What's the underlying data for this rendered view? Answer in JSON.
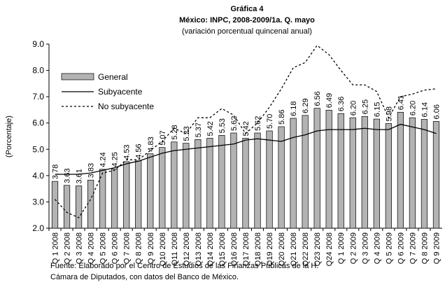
{
  "chart_data": {
    "type": "bar",
    "title": "Gráfica 4",
    "subtitle": "México: INPC, 2008-2009/1a. Q. mayo",
    "subtitle2": "(variación porcentual quincenal anual)",
    "ylabel": "(Porcentaje)",
    "notes": [
      "Fuente: Elaborado por el Centro de Estudios de las Finanzas Públicas de la H.",
      "Cámara de Diputados, con  datos del Banco de México."
    ],
    "categories": [
      "Q 1 2008",
      "Q 2 2008",
      "Q 3 2008",
      "Q 4 2008",
      "Q 5 2008",
      "Q 6 2008",
      "Q 7 2008",
      "Q 8 2008",
      "Q 9 2008",
      "Q10 2008",
      "Q11 2008",
      "Q12 2008",
      "Q13 2008",
      "Q14 2008",
      "Q15 2008",
      "Q16 2008",
      "Q17 2008",
      "Q18 2008",
      "Q19 2008",
      "Q20 2008",
      "Q21 2008",
      "Q22 2008",
      "Q23 2008",
      "Q24 2008",
      "Q 1 2009",
      "Q 2 2009",
      "Q 3 2009",
      "Q 4 2009",
      "Q 5 2009",
      "Q 6 2009",
      "Q 7 2009",
      "Q 8 2009",
      "Q 9 2009"
    ],
    "series": [
      {
        "name": "General",
        "type": "bar",
        "color": "#b3b3b3",
        "values": [
          3.78,
          3.63,
          3.61,
          3.83,
          4.24,
          4.25,
          4.53,
          4.56,
          4.83,
          5.07,
          5.28,
          5.23,
          5.37,
          5.42,
          5.53,
          5.62,
          5.42,
          5.62,
          5.7,
          5.86,
          6.18,
          6.29,
          6.56,
          6.49,
          6.36,
          6.2,
          6.25,
          6.15,
          5.98,
          6.41,
          6.2,
          6.14,
          6.06
        ],
        "value_labels": [
          "3.78",
          "3.63",
          "3.61",
          "3.83",
          "4.24",
          "4.25",
          "4.53",
          "4.56",
          "4.83",
          "5.07",
          "5.28",
          "5.23",
          "5.37",
          "5.42",
          "5.53",
          "5.62",
          "5.42",
          "5.62",
          "5.70",
          "5.86",
          "6.18",
          "6.29",
          "6.56",
          "6.49",
          "6.36",
          "6.20",
          "6.25",
          "6.15",
          "5.98",
          "6.41",
          "6.20",
          "6.14",
          "6.06"
        ]
      },
      {
        "name": "Subyacente",
        "type": "line",
        "color": "#000000",
        "dashed": false,
        "values": [
          4.05,
          4.05,
          4.05,
          4.1,
          4.2,
          4.3,
          4.45,
          4.55,
          4.7,
          4.85,
          4.95,
          5.0,
          5.05,
          5.1,
          5.15,
          5.2,
          5.35,
          5.4,
          5.35,
          5.3,
          5.45,
          5.55,
          5.7,
          5.75,
          5.75,
          5.75,
          5.8,
          5.75,
          5.75,
          5.95,
          5.85,
          5.75,
          5.6
        ]
      },
      {
        "name": "No subyacente",
        "type": "line",
        "color": "#000000",
        "dashed": true,
        "values": [
          3.1,
          2.6,
          2.4,
          3.1,
          4.1,
          4.2,
          4.6,
          4.6,
          4.95,
          5.3,
          5.8,
          5.6,
          6.2,
          6.2,
          6.55,
          6.3,
          5.6,
          6.0,
          6.6,
          7.3,
          8.1,
          8.3,
          8.95,
          8.6,
          8.0,
          7.45,
          7.45,
          7.2,
          6.2,
          7.0,
          7.1,
          7.25,
          7.3
        ]
      }
    ],
    "ylim": [
      2,
      9
    ],
    "yticks": [
      {
        "value": 2,
        "label": "2.0"
      },
      {
        "value": 3,
        "label": "3.0"
      },
      {
        "value": 4,
        "label": "4.0"
      },
      {
        "value": 5,
        "label": "5.0"
      },
      {
        "value": 6,
        "label": "6.0"
      },
      {
        "value": 7,
        "label": "7.0"
      },
      {
        "value": 8,
        "label": "8.0"
      },
      {
        "value": 9,
        "label": "9.0"
      }
    ],
    "legend": "upper left"
  }
}
